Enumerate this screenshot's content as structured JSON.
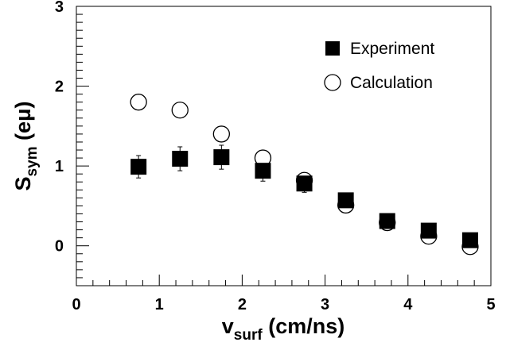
{
  "chart_data": {
    "type": "scatter",
    "x_title": {
      "main": "v",
      "sub": "surf",
      "units": " (cm/ns)"
    },
    "y_title": {
      "main": "S",
      "sub": "sym",
      "units": " (eμ)"
    },
    "xlim": [
      0,
      5
    ],
    "ylim": [
      -0.5,
      3
    ],
    "x_major_ticks": [
      0,
      1,
      2,
      3,
      4,
      5
    ],
    "y_major_ticks": [
      0,
      1,
      2,
      3
    ],
    "x_tick_labels": [
      "0",
      "1",
      "2",
      "3",
      "4",
      "5"
    ],
    "y_tick_labels": [
      "0",
      "1",
      "2",
      "3"
    ],
    "grid": false,
    "legend_position": "top-right",
    "series": [
      {
        "name": "Experiment",
        "marker": "filled-square",
        "color": "#000000",
        "x": [
          0.75,
          1.25,
          1.75,
          2.25,
          2.75,
          3.25,
          3.75,
          4.25,
          4.75
        ],
        "y": [
          0.99,
          1.09,
          1.11,
          0.94,
          0.78,
          0.57,
          0.31,
          0.19,
          0.07
        ],
        "err": [
          0.14,
          0.15,
          0.15,
          0.13,
          0.11,
          0.05,
          0.03,
          0.03,
          0.03
        ]
      },
      {
        "name": "Calculation",
        "marker": "open-circle",
        "color": "#000000",
        "x": [
          0.75,
          1.25,
          1.75,
          2.25,
          2.75,
          3.25,
          3.75,
          4.25,
          4.75
        ],
        "y": [
          1.8,
          1.7,
          1.4,
          1.1,
          0.82,
          0.51,
          0.29,
          0.12,
          -0.01
        ]
      }
    ]
  }
}
